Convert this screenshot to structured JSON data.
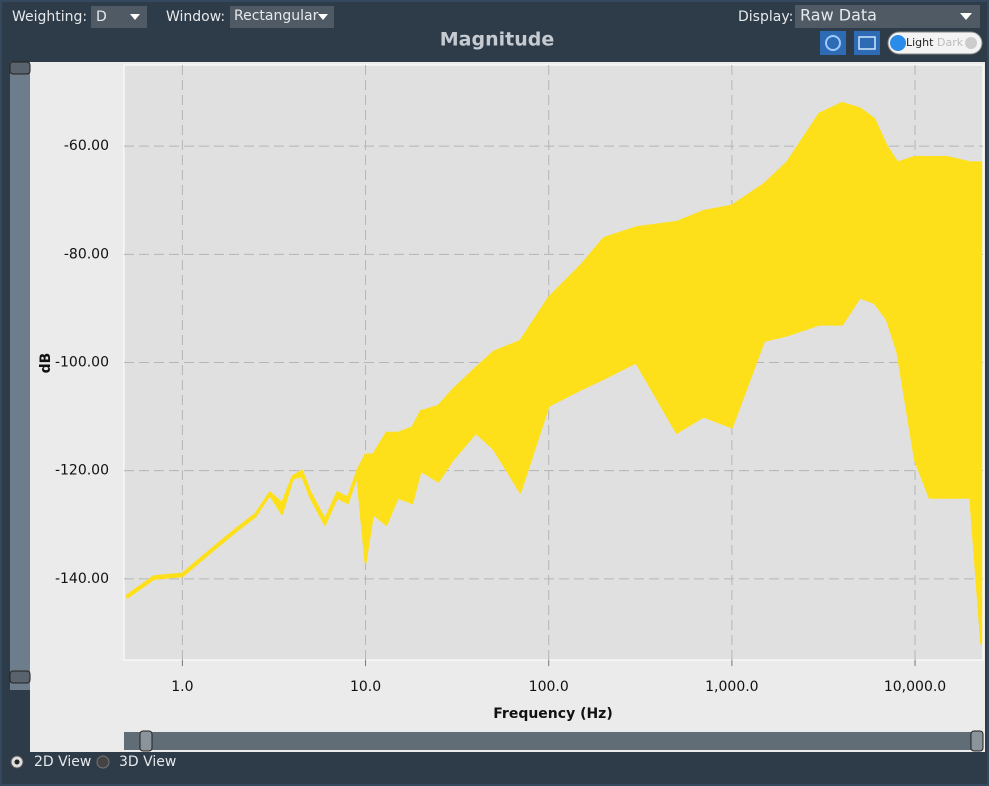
{
  "toolbar": {
    "weighting_label": "Weighting:",
    "weighting_value": "D",
    "window_label": "Window:",
    "window_value": "Rectangular",
    "display_label": "Display:",
    "display_value": "Raw Data",
    "theme_light": "Light",
    "theme_dark": "Dark"
  },
  "chart_data": {
    "type": "area",
    "title": "Magnitude",
    "x_label": "Frequency (Hz)",
    "y_label": "dB",
    "x": [
      0.5,
      0.7,
      1,
      1.5,
      2,
      2.5,
      3,
      3.5,
      4,
      4.5,
      5,
      6,
      7,
      8,
      9,
      10,
      11,
      13,
      15,
      18,
      20,
      25,
      30,
      40,
      50,
      70,
      100,
      150,
      200,
      300,
      500,
      700,
      1000,
      1500,
      2000,
      3000,
      4000,
      5000,
      6000,
      7000,
      8000,
      10000,
      12000,
      15000,
      20000,
      23000
    ],
    "series": [
      {
        "color": "#fde01a",
        "values": [
          -143,
          -139.5,
          -139,
          -134,
          -130.5,
          -128,
          -124,
          -126,
          -121,
          -120,
          -124,
          -129,
          -124,
          -125,
          -120,
          -117,
          -117,
          -113,
          -113,
          -112,
          -109,
          -108,
          -105,
          -101,
          -98,
          -96,
          -88,
          -82,
          -77,
          -75,
          -74,
          -72,
          -71,
          -67,
          -63,
          -54,
          -52,
          -53,
          -55,
          -60,
          -63,
          -62,
          -62,
          -62,
          -63,
          -63
        ]
      },
      {
        "color": "#fde01a",
        "values": [
          -143.5,
          -140,
          -139.5,
          -134.5,
          -131,
          -128.5,
          -124.5,
          -128,
          -121.5,
          -121,
          -125,
          -130,
          -125,
          -126,
          -121,
          -137,
          -128,
          -130,
          -125,
          -126,
          -120,
          -122,
          -118,
          -113,
          -116,
          -124,
          -108,
          -105,
          -103,
          -100,
          -113,
          -110,
          -112,
          -96,
          -95,
          -93,
          -93,
          -88,
          -89,
          -92,
          -98,
          -118,
          -125,
          -125,
          -125,
          -152
        ]
      }
    ],
    "xlim": [
      0.48,
      23500
    ],
    "ylim": [
      -155,
      -45
    ],
    "x_log": true,
    "grid": true,
    "xticks": [
      {
        "value": 1,
        "label": "1.0"
      },
      {
        "value": 10,
        "label": "10.0"
      },
      {
        "value": 100,
        "label": "100.0"
      },
      {
        "value": 1000,
        "label": "1,000.0"
      },
      {
        "value": 10000,
        "label": "10,000.0"
      }
    ],
    "yticks": [
      {
        "value": -60,
        "label": "-60.00"
      },
      {
        "value": -80,
        "label": "-80.00"
      },
      {
        "value": -100,
        "label": "-100.00"
      },
      {
        "value": -120,
        "label": "-120.00"
      },
      {
        "value": -140,
        "label": "-140.00"
      }
    ]
  },
  "view": {
    "options": [
      "2D View",
      "3D View"
    ]
  }
}
